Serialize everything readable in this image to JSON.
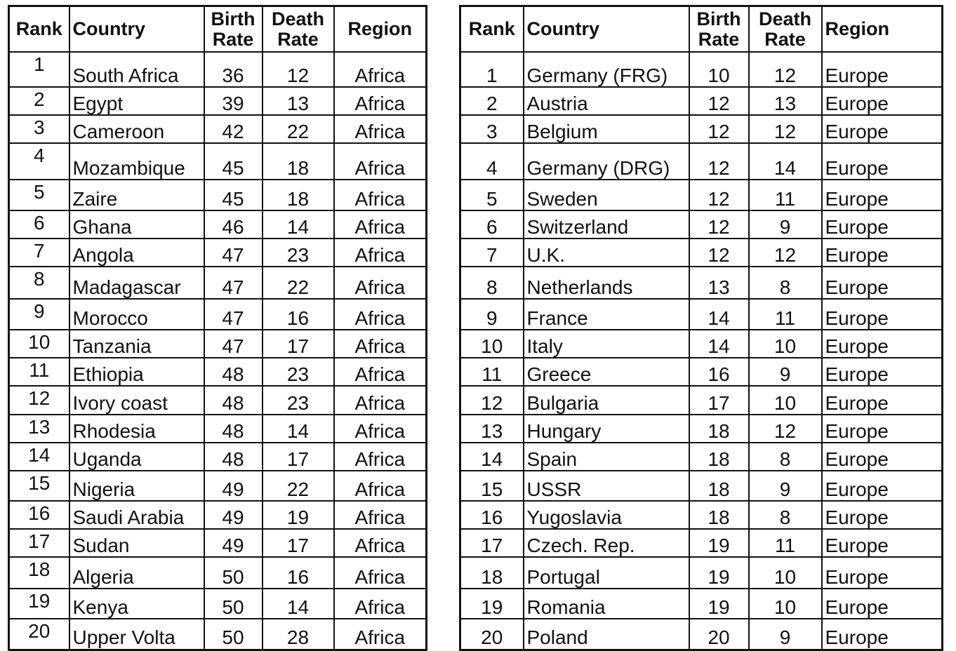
{
  "headers": {
    "rank": "Rank",
    "country": "Country",
    "birth_rate_1": "Birth",
    "birth_rate_2": "Rate",
    "death_rate_1": "Death",
    "death_rate_2": "Rate",
    "region": "Region"
  },
  "left_table": [
    {
      "rank": "1",
      "country": "South Africa",
      "birth": "36",
      "death": "12",
      "region": "Africa"
    },
    {
      "rank": "2",
      "country": "Egypt",
      "birth": "39",
      "death": "13",
      "region": "Africa"
    },
    {
      "rank": "3",
      "country": "Cameroon",
      "birth": "42",
      "death": "22",
      "region": "Africa"
    },
    {
      "rank": "4",
      "country": "Mozambique",
      "birth": "45",
      "death": "18",
      "region": "Africa"
    },
    {
      "rank": "5",
      "country": "Zaire",
      "birth": "45",
      "death": "18",
      "region": "Africa"
    },
    {
      "rank": "6",
      "country": "Ghana",
      "birth": "46",
      "death": "14",
      "region": "Africa"
    },
    {
      "rank": "7",
      "country": "Angola",
      "birth": "47",
      "death": "23",
      "region": "Africa"
    },
    {
      "rank": "8",
      "country": "Madagascar",
      "birth": "47",
      "death": "22",
      "region": "Africa"
    },
    {
      "rank": "9",
      "country": "Morocco",
      "birth": "47",
      "death": "16",
      "region": "Africa"
    },
    {
      "rank": "10",
      "country": "Tanzania",
      "birth": "47",
      "death": "17",
      "region": "Africa"
    },
    {
      "rank": "11",
      "country": "Ethiopia",
      "birth": "48",
      "death": "23",
      "region": "Africa"
    },
    {
      "rank": "12",
      "country": "Ivory coast",
      "birth": "48",
      "death": "23",
      "region": "Africa"
    },
    {
      "rank": "13",
      "country": "Rhodesia",
      "birth": "48",
      "death": "14",
      "region": "Africa"
    },
    {
      "rank": "14",
      "country": "Uganda",
      "birth": "48",
      "death": "17",
      "region": "Africa"
    },
    {
      "rank": "15",
      "country": "Nigeria",
      "birth": "49",
      "death": "22",
      "region": "Africa"
    },
    {
      "rank": "16",
      "country": "Saudi Arabia",
      "birth": "49",
      "death": "19",
      "region": "Africa"
    },
    {
      "rank": "17",
      "country": "Sudan",
      "birth": "49",
      "death": "17",
      "region": "Africa"
    },
    {
      "rank": "18",
      "country": "Algeria",
      "birth": "50",
      "death": "16",
      "region": "Africa"
    },
    {
      "rank": "19",
      "country": "Kenya",
      "birth": "50",
      "death": "14",
      "region": "Africa"
    },
    {
      "rank": "20",
      "country": "Upper Volta",
      "birth": "50",
      "death": "28",
      "region": "Africa"
    }
  ],
  "right_table": [
    {
      "rank": "1",
      "country": "Germany (FRG)",
      "birth": "10",
      "death": "12",
      "region": "Europe"
    },
    {
      "rank": "2",
      "country": "Austria",
      "birth": "12",
      "death": "13",
      "region": "Europe"
    },
    {
      "rank": "3",
      "country": "Belgium",
      "birth": "12",
      "death": "12",
      "region": "Europe"
    },
    {
      "rank": "4",
      "country": "Germany (DRG)",
      "birth": "12",
      "death": "14",
      "region": "Europe"
    },
    {
      "rank": "5",
      "country": "Sweden",
      "birth": "12",
      "death": "11",
      "region": "Europe"
    },
    {
      "rank": "6",
      "country": "Switzerland",
      "birth": "12",
      "death": "9",
      "region": "Europe"
    },
    {
      "rank": "7",
      "country": "U.K.",
      "birth": "12",
      "death": "12",
      "region": "Europe"
    },
    {
      "rank": "8",
      "country": "Netherlands",
      "birth": "13",
      "death": "8",
      "region": "Europe"
    },
    {
      "rank": "9",
      "country": "France",
      "birth": "14",
      "death": "11",
      "region": "Europe"
    },
    {
      "rank": "10",
      "country": "Italy",
      "birth": "14",
      "death": "10",
      "region": "Europe"
    },
    {
      "rank": "11",
      "country": "Greece",
      "birth": "16",
      "death": "9",
      "region": "Europe"
    },
    {
      "rank": "12",
      "country": "Bulgaria",
      "birth": "17",
      "death": "10",
      "region": "Europe"
    },
    {
      "rank": "13",
      "country": "Hungary",
      "birth": "18",
      "death": "12",
      "region": "Europe"
    },
    {
      "rank": "14",
      "country": "Spain",
      "birth": "18",
      "death": "8",
      "region": "Europe"
    },
    {
      "rank": "15",
      "country": "USSR",
      "birth": "18",
      "death": "9",
      "region": "Europe"
    },
    {
      "rank": "16",
      "country": "Yugoslavia",
      "birth": "18",
      "death": "8",
      "region": "Europe"
    },
    {
      "rank": "17",
      "country": "Czech. Rep.",
      "birth": "19",
      "death": "11",
      "region": "Europe"
    },
    {
      "rank": "18",
      "country": "Portugal",
      "birth": "19",
      "death": "10",
      "region": "Europe"
    },
    {
      "rank": "19",
      "country": "Romania",
      "birth": "19",
      "death": "10",
      "region": "Europe"
    },
    {
      "rank": "20",
      "country": "Poland",
      "birth": "20",
      "death": "9",
      "region": "Europe"
    }
  ]
}
